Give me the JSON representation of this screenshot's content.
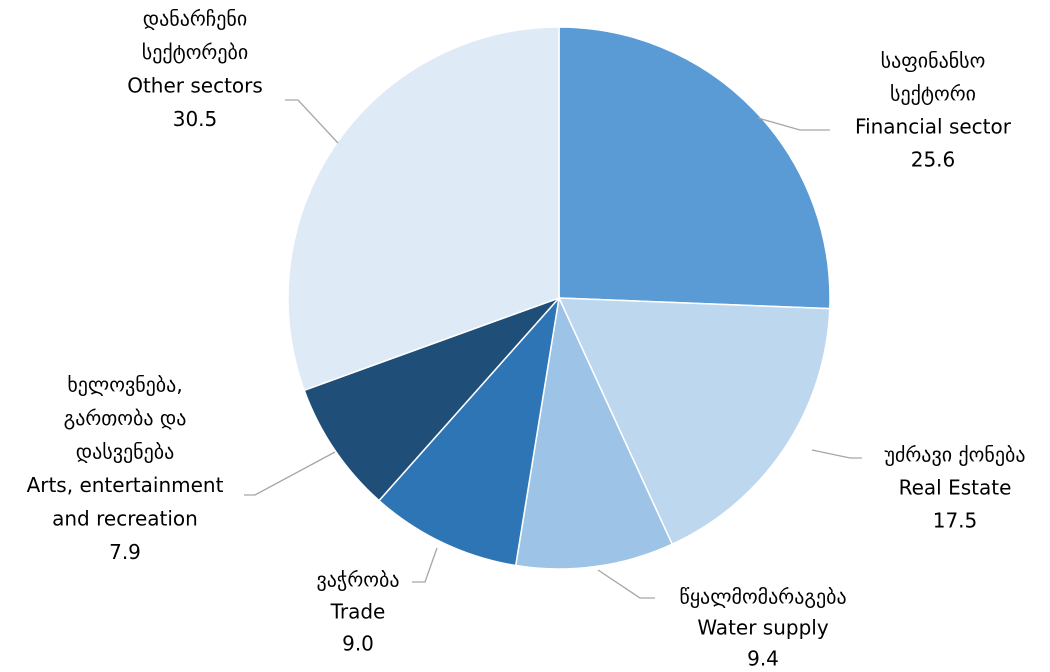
{
  "chart_data": {
    "type": "pie",
    "categories": [
      [
        "საფინანსო",
        "სექტორი",
        "Financial sector"
      ],
      [
        "უძრავი ქონება",
        "Real Estate"
      ],
      [
        "წყალმომარაგება",
        "Water supply"
      ],
      [
        "ვაჭრობა",
        "Trade"
      ],
      [
        "ხელოვნება,",
        "გართობა და",
        "დასვენება",
        "Arts, entertainment",
        "and recreation"
      ],
      [
        "დანარჩენი",
        "სექტორები",
        "Other sectors"
      ]
    ],
    "values": [
      25.6,
      17.5,
      9.4,
      9,
      7.9,
      30.5
    ],
    "value_labels": [
      "25.6",
      "17.5",
      "9.4",
      "9.0",
      "7.9",
      "30.5"
    ],
    "colors": [
      "#5b9bd5",
      "#bdd7ee",
      "#9dc3e6",
      "#2e75b6",
      "#1f4e79",
      "#deebf7"
    ]
  }
}
